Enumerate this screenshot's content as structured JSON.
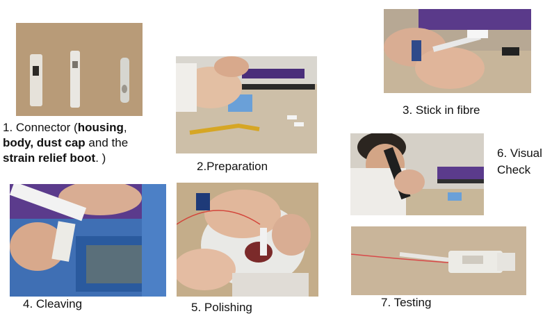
{
  "steps": {
    "step1": {
      "pre": "1. Connector (",
      "b1": "housing",
      "s1": ",",
      "b2": "body, dust cap",
      "s2": " and the",
      "b3": "strain relief boot",
      "s3": ". )"
    },
    "step2": {
      "label": "2.Preparation"
    },
    "step3": {
      "label": "3. Stick in fibre"
    },
    "step4": {
      "label": "4. Cleaving"
    },
    "step5": {
      "label": "5. Polishing"
    },
    "step6": {
      "line1": "6. Visual",
      "line2": "Check"
    },
    "step7": {
      "label": "7. Testing"
    }
  }
}
